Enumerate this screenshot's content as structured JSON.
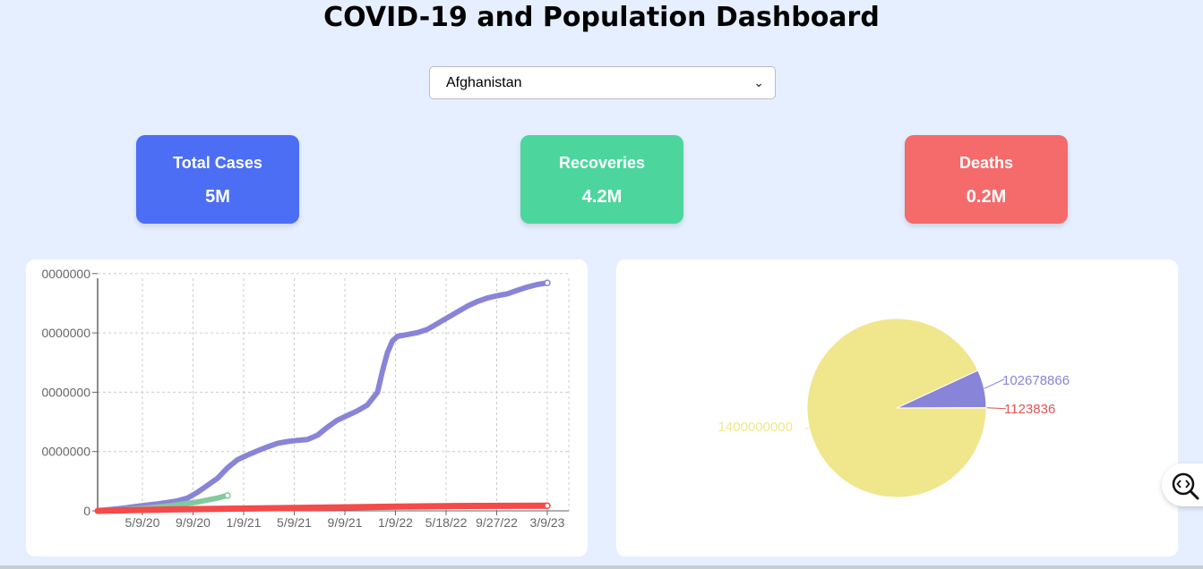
{
  "header": {
    "title": "COVID-19 and Population Dashboard"
  },
  "country_select": {
    "selected": "Afghanistan"
  },
  "cards": {
    "cases": {
      "label": "Total Cases",
      "value": "5M",
      "color": "#4c6ef5"
    },
    "recoveries": {
      "label": "Recoveries",
      "value": "4.2M",
      "color": "#4cd69e"
    },
    "deaths": {
      "label": "Deaths",
      "value": "0.2M",
      "color": "#f56a6a"
    }
  },
  "chart_data": [
    {
      "type": "line",
      "x_tick_labels": [
        "5/9/20",
        "9/9/20",
        "1/9/21",
        "5/9/21",
        "9/9/21",
        "1/9/22",
        "5/18/22",
        "9/27/22",
        "3/9/23"
      ],
      "y_tick_labels": [
        "0",
        "0000000",
        "0000000",
        "0000000",
        "0000000"
      ],
      "grid": true,
      "series": [
        {
          "color": "#8884d8",
          "points": [
            [
              0,
              0
            ],
            [
              0.2,
              0.5
            ],
            [
              0.4,
              0.9
            ],
            [
              0.6,
              1.4
            ],
            [
              0.8,
              2
            ],
            [
              1.0,
              2.5
            ],
            [
              1.2,
              3
            ],
            [
              1.4,
              3.6
            ],
            [
              1.6,
              4.3
            ],
            [
              1.8,
              5.5
            ],
            [
              2.0,
              8
            ],
            [
              2.2,
              11
            ],
            [
              2.4,
              14
            ],
            [
              2.6,
              18.5
            ],
            [
              2.8,
              22
            ],
            [
              3.0,
              24
            ],
            [
              3.2,
              25.8
            ],
            [
              3.4,
              27.5
            ],
            [
              3.6,
              29
            ],
            [
              3.8,
              29.8
            ],
            [
              4.0,
              30.3
            ],
            [
              4.2,
              30.7
            ],
            [
              4.4,
              32.5
            ],
            [
              4.6,
              36
            ],
            [
              4.8,
              39
            ],
            [
              5.0,
              41
            ],
            [
              5.2,
              43
            ],
            [
              5.4,
              45.5
            ],
            [
              5.6,
              51
            ],
            [
              5.7,
              60
            ],
            [
              5.8,
              68
            ],
            [
              5.9,
              73
            ],
            [
              6.0,
              75
            ],
            [
              6.2,
              75.8
            ],
            [
              6.4,
              76.6
            ],
            [
              6.6,
              78
            ],
            [
              6.8,
              80.5
            ],
            [
              7.0,
              83
            ],
            [
              7.2,
              85.5
            ],
            [
              7.4,
              88
            ],
            [
              7.6,
              90
            ],
            [
              7.8,
              91.5
            ],
            [
              8.0,
              92.5
            ],
            [
              8.2,
              93.3
            ],
            [
              8.4,
              94.8
            ],
            [
              8.6,
              96.2
            ],
            [
              8.8,
              97.3
            ],
            [
              9.0,
              98
            ]
          ]
        },
        {
          "color": "#82ca9d",
          "points": [
            [
              0,
              0
            ],
            [
              0.5,
              0.5
            ],
            [
              1.0,
              1.2
            ],
            [
              1.5,
              2.3
            ],
            [
              2.0,
              3.8
            ],
            [
              2.4,
              5.5
            ],
            [
              2.6,
              6.6
            ]
          ]
        },
        {
          "color": "#f44a4a",
          "points": [
            [
              0,
              0
            ],
            [
              1.5,
              0.6
            ],
            [
              3,
              1
            ],
            [
              4.5,
              1.4
            ],
            [
              6,
              1.8
            ],
            [
              7.5,
              2.1
            ],
            [
              9,
              2.2
            ]
          ]
        }
      ]
    },
    {
      "type": "pie",
      "slices": [
        {
          "value": 1400000000,
          "label": "1400000000",
          "color": "#f0e68c"
        },
        {
          "value": 102678866,
          "label": "102678866",
          "color": "#8884d8"
        },
        {
          "value": 1123836,
          "label": "1123836",
          "color": "#e05454"
        }
      ]
    }
  ]
}
